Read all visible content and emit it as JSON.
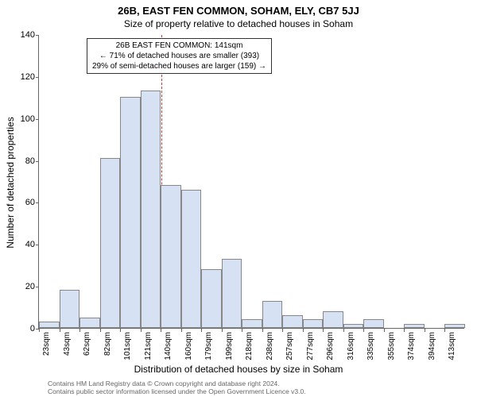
{
  "title": "26B, EAST FEN COMMON, SOHAM, ELY, CB7 5JJ",
  "subtitle": "Size of property relative to detached houses in Soham",
  "ylabel": "Number of detached properties",
  "xlabel": "Distribution of detached houses by size in Soham",
  "footer_line1": "Contains HM Land Registry data © Crown copyright and database right 2024.",
  "footer_line2": "Contains public sector information licensed under the Open Government Licence v3.0.",
  "annotation": {
    "line1": "26B EAST FEN COMMON: 141sqm",
    "line2": "← 71% of detached houses are smaller (393)",
    "line3": "29% of semi-detached houses are larger (159) →"
  },
  "chart": {
    "type": "histogram",
    "bar_fill": "#d6e2f3",
    "bar_stroke": "#888888",
    "ref_line_color": "#c33",
    "ref_line_x": 141,
    "background": "#ffffff",
    "axis_color": "#666666",
    "ylim": [
      0,
      140
    ],
    "ytick_step": 20,
    "x_range": [
      23,
      433
    ],
    "categories": [
      "23sqm",
      "43sqm",
      "62sqm",
      "82sqm",
      "101sqm",
      "121sqm",
      "140sqm",
      "160sqm",
      "179sqm",
      "199sqm",
      "218sqm",
      "238sqm",
      "257sqm",
      "277sqm",
      "296sqm",
      "316sqm",
      "335sqm",
      "355sqm",
      "374sqm",
      "394sqm",
      "413sqm"
    ],
    "values": [
      3,
      18,
      5,
      81,
      110,
      113,
      68,
      66,
      28,
      33,
      4,
      13,
      6,
      4,
      8,
      2,
      4,
      0,
      2,
      0,
      2
    ],
    "tick_fontsize": 10,
    "label_fontsize": 12,
    "title_fontsize": 13
  }
}
